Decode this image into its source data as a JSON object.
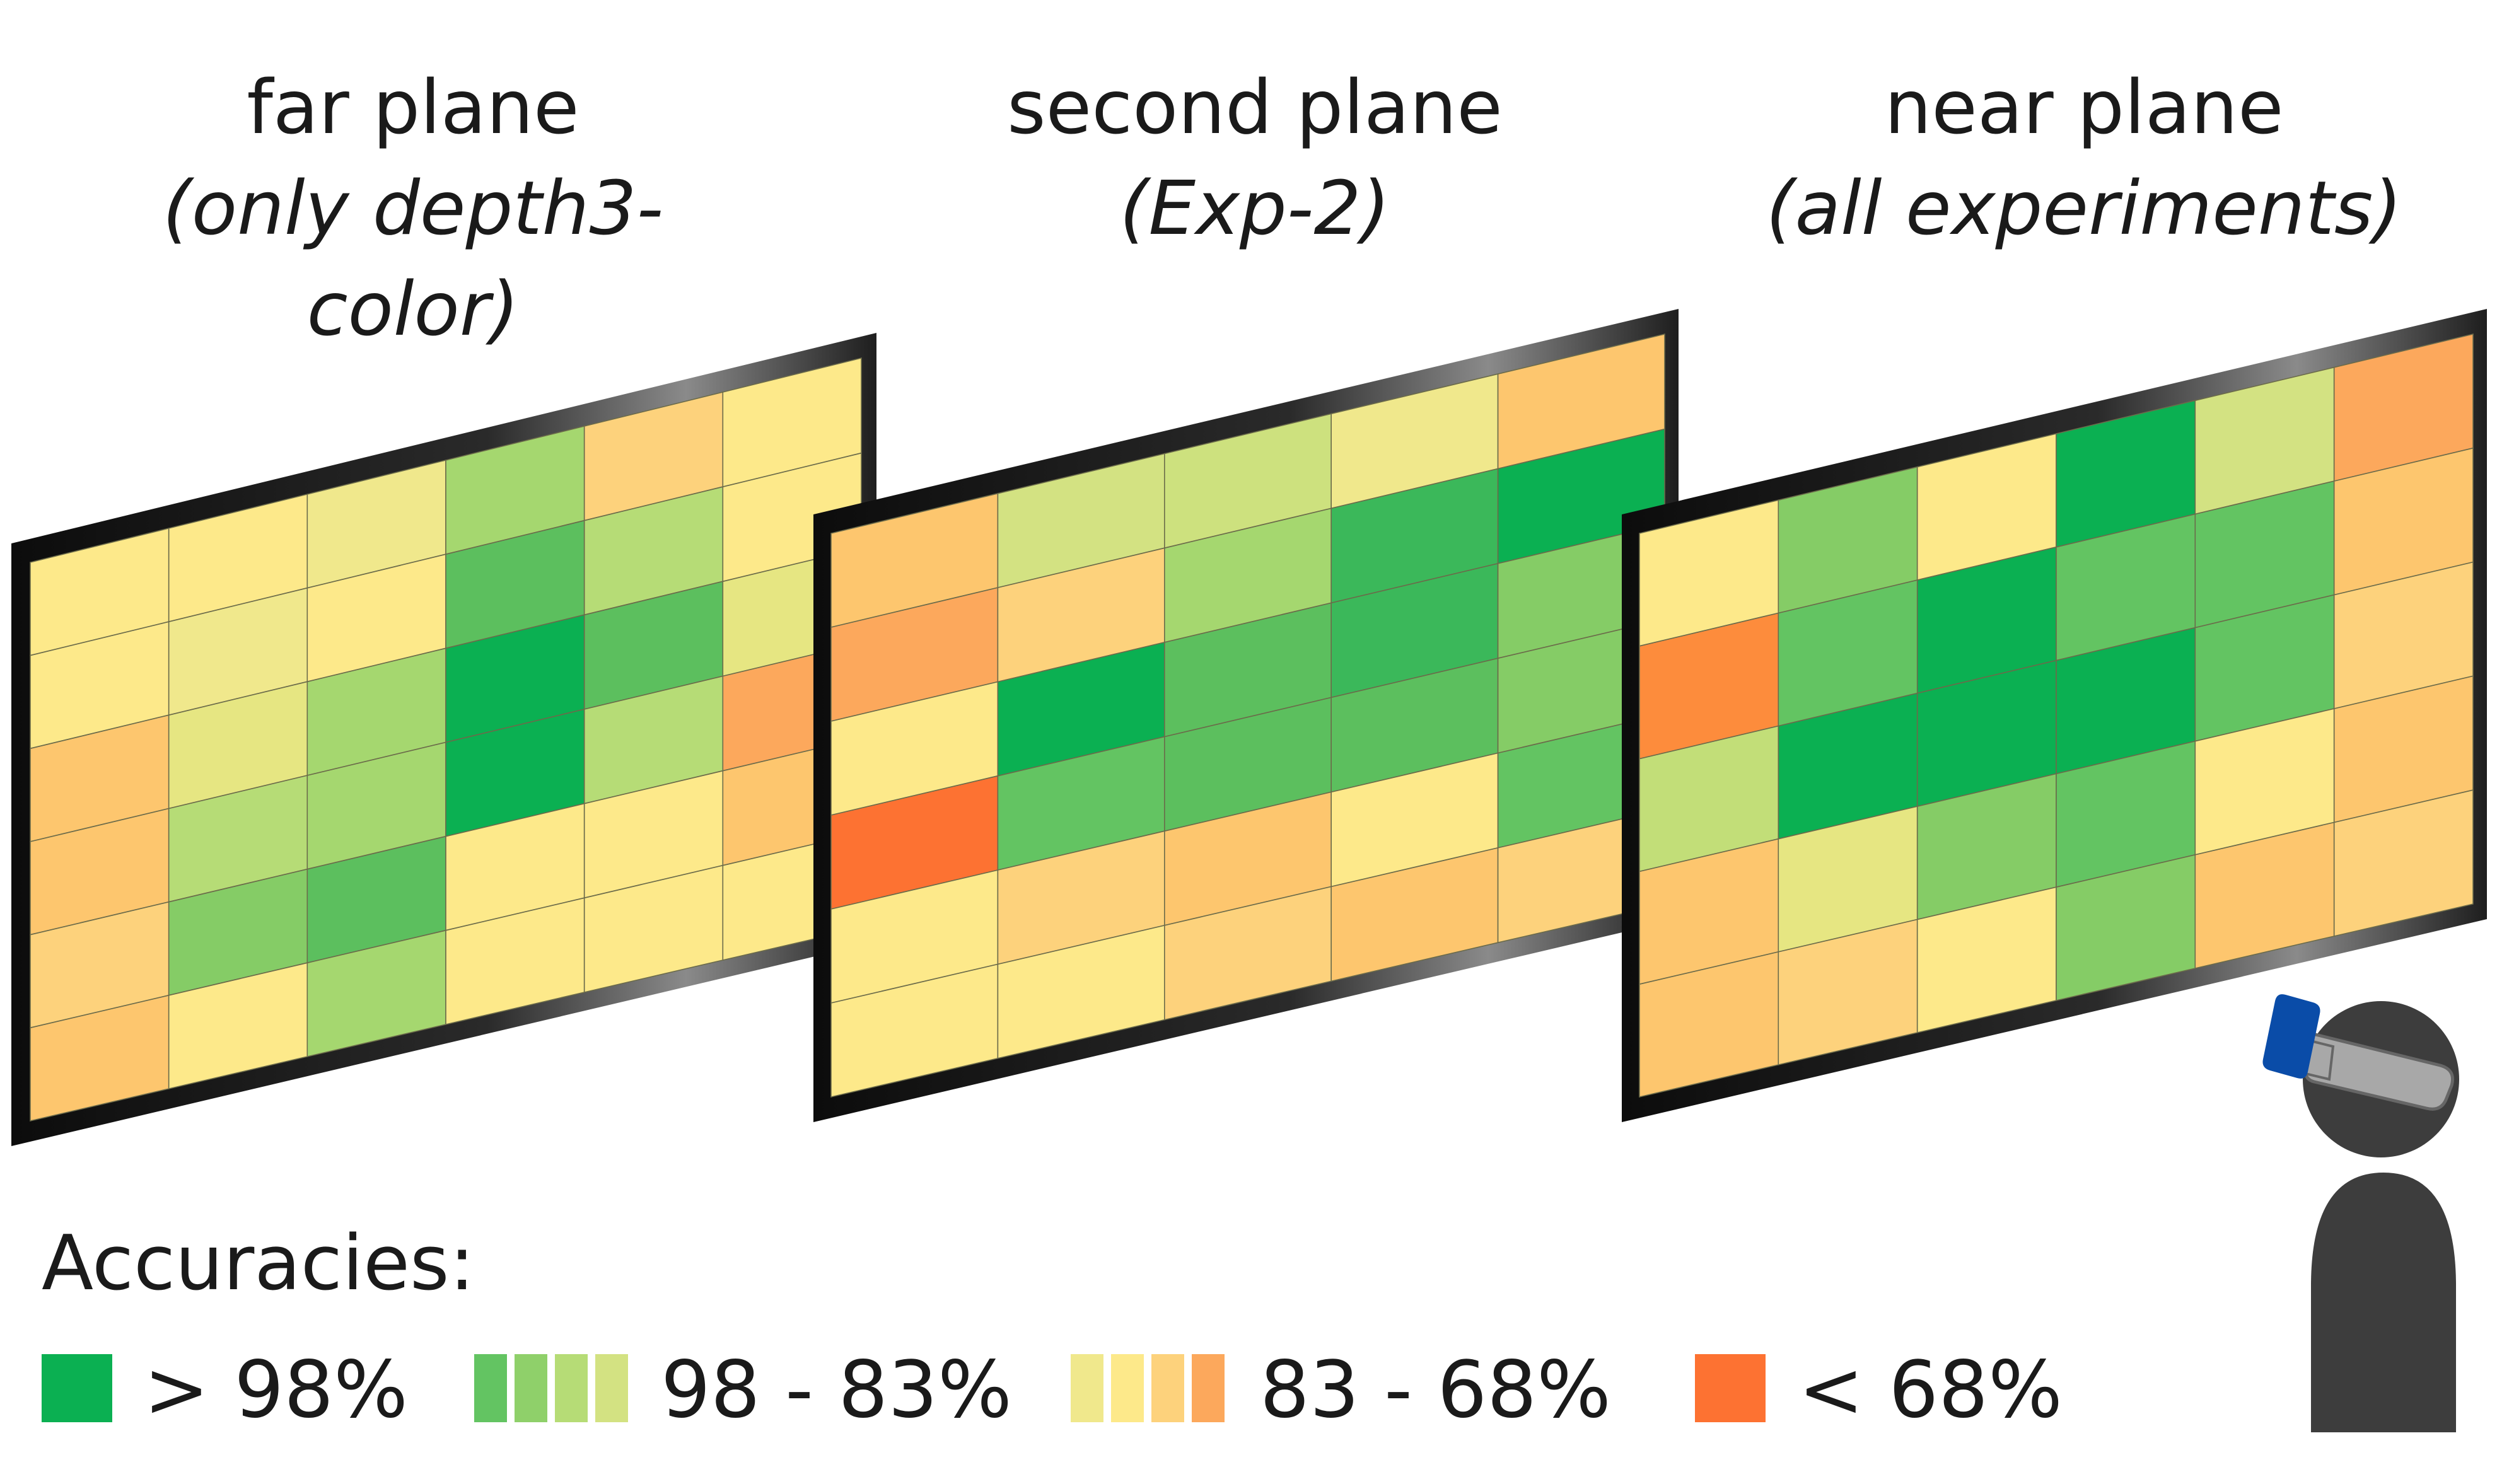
{
  "titles": {
    "far": {
      "line1": "far plane",
      "line2": "(only depth3-color)"
    },
    "second": {
      "line1": "second plane",
      "line2": "(Exp-2)"
    },
    "near": {
      "line1": "near plane",
      "line2": "(all experiments)"
    }
  },
  "legend": {
    "title": "Accuracies:",
    "items": [
      {
        "label": "> 98%",
        "colors": [
          "#0bb052"
        ]
      },
      {
        "label": "98 - 83%",
        "colors": [
          "#63c462",
          "#8fd06a",
          "#b6dc76",
          "#d3e282"
        ]
      },
      {
        "label": "83 - 68%",
        "colors": [
          "#f0e88c",
          "#fde98a",
          "#fdd27c",
          "#fca85c"
        ]
      },
      {
        "label": "< 68%",
        "colors": [
          "#fd7232"
        ]
      }
    ]
  },
  "planes": [
    {
      "id": "far",
      "rows": 6,
      "cols": 6,
      "grid": [
        [
          "#fde98a",
          "#fde98a",
          "#f0e88c",
          "#a5d76f",
          "#fdd27c",
          "#fde98a"
        ],
        [
          "#fde98a",
          "#f0e88c",
          "#fde98a",
          "#5cbf5e",
          "#b6dc76",
          "#fde98a"
        ],
        [
          "#fdc66e",
          "#e6e682",
          "#a5d76f",
          "#0bb052",
          "#5cbf5e",
          "#e6e682"
        ],
        [
          "#fdc66e",
          "#b6dc76",
          "#a5d76f",
          "#0bb052",
          "#b6dc76",
          "#fca85c"
        ],
        [
          "#fdd27c",
          "#85cc66",
          "#5cbf5e",
          "#fde98a",
          "#fde98a",
          "#fdc66e"
        ],
        [
          "#fdc66e",
          "#fde98a",
          "#a5d76f",
          "#fde98a",
          "#fde98a",
          "#fde98a"
        ]
      ]
    },
    {
      "id": "second",
      "rows": 6,
      "cols": 5,
      "grid": [
        [
          "#fdc66e",
          "#d3e282",
          "#cde17e",
          "#f0e88c",
          "#fdc66e"
        ],
        [
          "#fca85c",
          "#fdd27c",
          "#a5d76f",
          "#3bb85a",
          "#0bb052"
        ],
        [
          "#fde98a",
          "#0bb052",
          "#5cbf5e",
          "#3bb85a",
          "#85cc66"
        ],
        [
          "#fd7232",
          "#63c462",
          "#5cbf5e",
          "#5cbf5e",
          "#85cc66"
        ],
        [
          "#fde98a",
          "#fdd27c",
          "#fdc66e",
          "#fde98a",
          "#63c462"
        ],
        [
          "#fde98a",
          "#fde98a",
          "#fdd27c",
          "#fdc66e",
          "#fdd27c"
        ]
      ]
    },
    {
      "id": "near",
      "rows": 5,
      "cols": 6,
      "grid": [
        [
          "#fde98a",
          "#85cc66",
          "#fde98a",
          "#0bb052",
          "#d3e282",
          "#fca85c"
        ],
        [
          "#fd8c3c",
          "#63c462",
          "#0bb052",
          "#63c462",
          "#63c462",
          "#fdc66e"
        ],
        [
          "#c2de78",
          "#0bb052",
          "#0bb052",
          "#0bb052",
          "#63c462",
          "#fdd27c"
        ],
        [
          "#fdc66e",
          "#e6e682",
          "#85cc66",
          "#63c462",
          "#fde98a",
          "#fdc66e"
        ],
        [
          "#fdc66e",
          "#fdd27c",
          "#fde98a",
          "#85cc66",
          "#fdc66e",
          "#fdd27c"
        ]
      ]
    }
  ],
  "person": {
    "body_color": "#3d3d3d",
    "headset_color": "#a8a8a8",
    "headset_accent": "#0a4ca8"
  },
  "frame_color": "#1a1a1a"
}
